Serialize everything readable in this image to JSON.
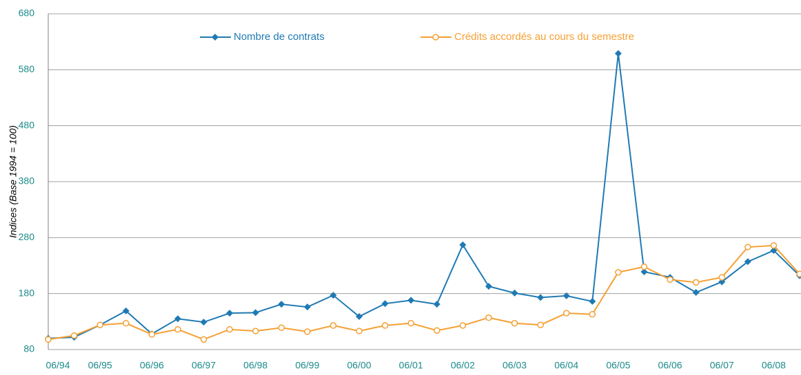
{
  "chart_data": {
    "type": "line",
    "ylabel": "Indices (Base 1994 = 100)",
    "categories": [
      "06/94",
      null,
      "06/95",
      null,
      "06/96",
      null,
      "06/97",
      null,
      "06/98",
      null,
      "06/99",
      null,
      "06/00",
      null,
      "06/01",
      null,
      "06/02",
      null,
      "06/03",
      null,
      "06/04",
      null,
      "06/05",
      null,
      "06/06",
      null,
      "06/07",
      null,
      "06/08",
      null
    ],
    "series": [
      {
        "name": "Nombre de contrats",
        "color": "#1f7ab4",
        "marker": "diamond",
        "values": [
          100,
          102,
          124,
          149,
          108,
          135,
          129,
          145,
          146,
          161,
          156,
          177,
          139,
          162,
          168,
          161,
          267,
          193,
          181,
          173,
          176,
          166,
          609,
          219,
          209,
          182,
          201,
          237,
          257,
          212
        ]
      },
      {
        "name": "Crédits accordés au cours du semestre",
        "color": "#f5a033",
        "marker": "circle",
        "values": [
          98,
          105,
          124,
          127,
          107,
          116,
          98,
          116,
          113,
          119,
          112,
          123,
          113,
          123,
          127,
          114,
          123,
          137,
          127,
          124,
          145,
          143,
          218,
          228,
          205,
          200,
          209,
          263,
          266,
          215
        ]
      }
    ],
    "ylim": [
      80,
      680
    ],
    "yticks": [
      80,
      180,
      280,
      380,
      480,
      580,
      680
    ],
    "grid": true
  }
}
